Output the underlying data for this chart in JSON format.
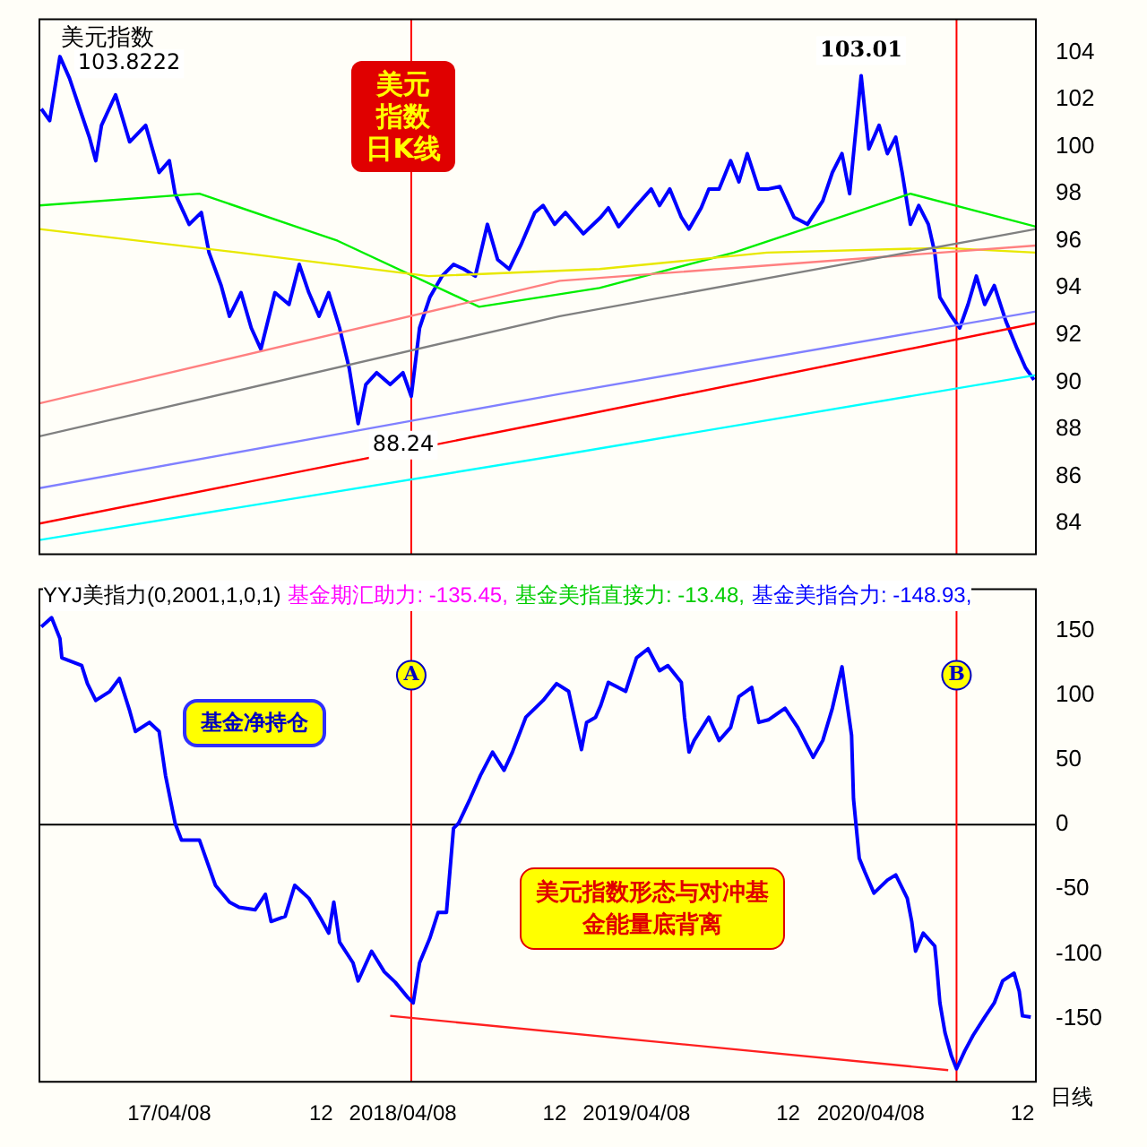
{
  "chart_data": [
    {
      "type": "line",
      "marker": "none",
      "grid": false,
      "legend": false,
      "tick_labels": "y",
      "xlim": [
        "2016-09-17",
        "2020-12-22"
      ],
      "ylim": [
        82.7,
        105.4
      ],
      "yticks": [
        84,
        86,
        88,
        90,
        92,
        94,
        96,
        98,
        100,
        102,
        104
      ],
      "xticks": [
        {
          "value": "2017-04-08",
          "label": null
        },
        {
          "value": "2017-12-01",
          "label": null
        },
        {
          "value": "2018-04-08",
          "label": null
        },
        {
          "value": "2018-12-01",
          "label": null
        },
        {
          "value": "2019-04-08",
          "label": null
        },
        {
          "value": "2019-12-01",
          "label": null
        },
        {
          "value": "2020-04-08",
          "label": null
        },
        {
          "value": "2020-12-01",
          "label": null
        }
      ],
      "series": [
        {
          "color": "#00ffff",
          "x": [
            "2016-09-17",
            "2018-12-09",
            "2020-12-22"
          ],
          "values": [
            83.3,
            86.9,
            90.3
          ]
        },
        {
          "color": "#ff0000",
          "x": [
            "2016-09-17",
            "2018-12-09",
            "2020-12-22"
          ],
          "values": [
            84.0,
            88.4,
            92.5
          ]
        },
        {
          "color": "#8080ff",
          "x": [
            "2016-09-17",
            "2018-12-09",
            "2020-12-22"
          ],
          "values": [
            85.5,
            89.5,
            93.0
          ]
        },
        {
          "color": "#808080",
          "x": [
            "2016-09-17",
            "2018-12-09",
            "2020-12-22"
          ],
          "values": [
            87.7,
            92.8,
            96.5
          ]
        },
        {
          "color": "#ff8080",
          "x": [
            "2016-09-17",
            "2018-12-09",
            "2020-12-22"
          ],
          "values": [
            89.1,
            94.3,
            95.8
          ]
        },
        {
          "color": "#e8e800",
          "x": [
            "2016-09-17",
            "2017-07-26",
            "2018-05-18",
            "2019-02-09",
            "2019-10-29",
            "2020-07-30",
            "2020-12-22"
          ],
          "values": [
            96.5,
            95.5,
            94.5,
            94.8,
            95.5,
            95.7,
            95.5
          ]
        },
        {
          "color": "#00ee00",
          "x": [
            "2016-09-17",
            "2017-05-25",
            "2017-12-27",
            "2018-08-05",
            "2019-02-09",
            "2019-09-07",
            "2020-06-09",
            "2020-12-22"
          ],
          "values": [
            97.5,
            98.0,
            96.0,
            93.2,
            94.0,
            95.5,
            98.0,
            96.6
          ]
        },
        {
          "name": "美元指数",
          "color": "#0000ff",
          "x": [
            "2016-09-20",
            "2016-10-03",
            "2016-10-19",
            "2016-11-03",
            "2016-11-19",
            "2016-12-04",
            "2016-12-14",
            "2016-12-23",
            "2017-01-14",
            "2017-02-05",
            "2017-03-02",
            "2017-03-23",
            "2017-04-08",
            "2017-04-17",
            "2017-05-09",
            "2017-05-28",
            "2017-06-09",
            "2017-06-28",
            "2017-07-11",
            "2017-07-29",
            "2017-08-14",
            "2017-08-29",
            "2017-09-20",
            "2017-10-12",
            "2017-10-28",
            "2017-11-12",
            "2017-11-28",
            "2017-12-13",
            "2017-12-30",
            "2018-01-14",
            "2018-01-28",
            "2018-02-09",
            "2018-02-26",
            "2018-03-19",
            "2018-04-08",
            "2018-04-21",
            "2018-05-04",
            "2018-05-20",
            "2018-06-08",
            "2018-06-26",
            "2018-07-12",
            "2018-07-30",
            "2018-08-18",
            "2018-09-03",
            "2018-09-21",
            "2018-10-09",
            "2018-10-31",
            "2018-11-13",
            "2018-12-01",
            "2018-12-18",
            "2019-01-15",
            "2019-02-11",
            "2019-02-23",
            "2019-03-11",
            "2019-04-08",
            "2019-05-01",
            "2019-05-14",
            "2019-05-30",
            "2019-06-17",
            "2019-06-29",
            "2019-07-18",
            "2019-07-30",
            "2019-08-15",
            "2019-09-02",
            "2019-09-15",
            "2019-09-28",
            "2019-10-16",
            "2019-10-31",
            "2019-11-18",
            "2019-12-10",
            "2019-12-31",
            "2020-01-24",
            "2020-02-08",
            "2020-02-23",
            "2020-03-06",
            "2020-03-24",
            "2020-04-05",
            "2020-04-21",
            "2020-05-04",
            "2020-05-17",
            "2020-05-27",
            "2020-06-09",
            "2020-06-22",
            "2020-07-07",
            "2020-07-17",
            "2020-07-25",
            "2020-08-12",
            "2020-08-25",
            "2020-09-07",
            "2020-09-20",
            "2020-10-03",
            "2020-10-18",
            "2020-11-05",
            "2020-11-23",
            "2020-12-06",
            "2020-12-19"
          ],
          "values": [
            101.6,
            101.1,
            103.82,
            102.9,
            101.6,
            100.4,
            99.4,
            100.9,
            102.2,
            100.2,
            100.9,
            98.9,
            99.4,
            98.0,
            96.7,
            97.2,
            95.5,
            94.1,
            92.8,
            93.8,
            92.3,
            91.4,
            93.8,
            93.3,
            95.0,
            93.8,
            92.8,
            93.8,
            92.3,
            90.6,
            88.24,
            89.9,
            90.4,
            89.9,
            90.4,
            89.4,
            92.3,
            93.6,
            94.5,
            95.0,
            94.8,
            94.5,
            96.7,
            95.2,
            94.8,
            95.8,
            97.2,
            97.5,
            96.7,
            97.2,
            96.3,
            97.0,
            97.4,
            96.6,
            97.5,
            98.2,
            97.5,
            98.2,
            97.0,
            96.5,
            97.4,
            98.2,
            98.2,
            99.4,
            98.5,
            99.7,
            98.2,
            98.2,
            98.3,
            97.0,
            96.7,
            97.7,
            98.9,
            99.7,
            98.0,
            103.01,
            99.9,
            100.9,
            99.7,
            100.4,
            98.9,
            96.7,
            97.5,
            96.7,
            95.5,
            93.6,
            92.8,
            92.3,
            93.3,
            94.5,
            93.3,
            94.1,
            92.6,
            91.4,
            90.6,
            90.1
          ]
        }
      ],
      "ref_lines": [
        {
          "axis": "x",
          "value": "2018-04-21",
          "color": "#ff0000"
        },
        {
          "axis": "x",
          "value": "2020-08-20",
          "color": "#ff0000"
        }
      ],
      "annotations": [
        {
          "text": "103.8222",
          "x": "2016-10-19",
          "y": 103.82
        },
        {
          "text": "88.24",
          "x": "2018-01-28",
          "y": 88.24
        },
        {
          "text": "103.01",
          "x": "2020-03-24",
          "y": 103.01
        },
        "美元指数日K线"
      ]
    },
    {
      "type": "line",
      "marker": "none",
      "grid": false,
      "legend": false,
      "title": "YYJ美指力(0,2001,1,0,1)",
      "xlim": [
        "2016-09-17",
        "2020-12-22"
      ],
      "ylim": [
        -199,
        182
      ],
      "yticks": [
        -150,
        -100,
        -50,
        0,
        50,
        100,
        150
      ],
      "xticks": [
        {
          "value": "2017-04-08",
          "label": "17/04/08"
        },
        {
          "value": "2017-12-01",
          "label": "12"
        },
        {
          "value": "2018-04-08",
          "label": "2018/04/08"
        },
        {
          "value": "2018-12-01",
          "label": "12"
        },
        {
          "value": "2019-04-08",
          "label": "2019/04/08"
        },
        {
          "value": "2019-12-01",
          "label": "12"
        },
        {
          "value": "2020-04-08",
          "label": "2020/04/08"
        },
        {
          "value": "2020-12-01",
          "label": "12"
        }
      ],
      "series": [
        {
          "color": "#0000ff",
          "x": [
            "2016-09-20",
            "2016-10-06",
            "2016-10-19",
            "2016-10-22",
            "2016-11-22",
            "2016-12-01",
            "2016-12-14",
            "2017-01-05",
            "2017-01-20",
            "2017-02-05",
            "2017-02-14",
            "2017-03-08",
            "2017-03-23",
            "2017-04-02",
            "2017-04-17",
            "2017-04-27",
            "2017-05-25",
            "2017-06-19",
            "2017-07-11",
            "2017-07-26",
            "2017-08-20",
            "2017-09-05",
            "2017-09-14",
            "2017-10-06",
            "2017-10-21",
            "2017-11-12",
            "2017-12-01",
            "2017-12-13",
            "2017-12-21",
            "2017-12-30",
            "2018-01-20",
            "2018-01-28",
            "2018-02-18",
            "2018-03-10",
            "2018-03-27",
            "2018-04-16",
            "2018-04-24",
            "2018-05-04",
            "2018-05-20",
            "2018-06-02",
            "2018-06-15",
            "2018-06-26",
            "2018-07-04",
            "2018-07-22",
            "2018-08-07",
            "2018-08-26",
            "2018-09-13",
            "2018-09-26",
            "2018-10-17",
            "2018-11-13",
            "2018-12-04",
            "2018-12-23",
            "2019-01-12",
            "2019-01-20",
            "2019-02-03",
            "2019-02-11",
            "2019-02-23",
            "2019-03-22",
            "2019-04-08",
            "2019-04-26",
            "2019-05-14",
            "2019-05-27",
            "2019-06-17",
            "2019-06-22",
            "2019-06-29",
            "2019-07-07",
            "2019-07-30",
            "2019-08-15",
            "2019-09-02",
            "2019-09-15",
            "2019-10-05",
            "2019-10-16",
            "2019-10-31",
            "2019-11-26",
            "2019-12-16",
            "2020-01-09",
            "2020-01-24",
            "2020-02-08",
            "2020-02-23",
            "2020-03-09",
            "2020-03-12",
            "2020-03-21",
            "2020-03-30",
            "2020-04-13",
            "2020-05-04",
            "2020-05-17",
            "2020-06-04",
            "2020-06-11",
            "2020-06-17",
            "2020-06-29",
            "2020-07-17",
            "2020-07-20",
            "2020-07-25",
            "2020-08-02",
            "2020-08-12",
            "2020-08-20",
            "2020-09-02",
            "2020-09-15",
            "2020-10-03",
            "2020-10-18",
            "2020-10-31",
            "2020-11-18",
            "2020-11-26",
            "2020-12-01",
            "2020-12-14"
          ],
          "values": [
            153,
            160,
            144,
            129,
            123,
            109,
            96,
            103,
            113,
            88,
            72,
            79,
            72,
            38,
            1,
            -12,
            -12,
            -47,
            -60,
            -64,
            -66,
            -54,
            -75,
            -71,
            -47,
            -57,
            -73,
            -84,
            -60,
            -91,
            -107,
            -121,
            -98,
            -114,
            -122,
            -134,
            -138,
            -107,
            -88,
            -68,
            -68,
            -3,
            1,
            20,
            38,
            56,
            42,
            56,
            83,
            96,
            109,
            103,
            58,
            79,
            83,
            92,
            110,
            103,
            129,
            136,
            119,
            123,
            110,
            83,
            56,
            65,
            83,
            65,
            75,
            99,
            106,
            79,
            81,
            90,
            75,
            52,
            65,
            90,
            122,
            69,
            20,
            -26,
            -37,
            -53,
            -43,
            -39,
            -57,
            -75,
            -98,
            -84,
            -94,
            -109,
            -138,
            -161,
            -179,
            -189,
            -175,
            -163,
            -149,
            -138,
            -121,
            -115,
            -129,
            -148,
            -149
          ]
        },
        {
          "color": "#ff2020",
          "x": [
            "2018-03-19",
            "2020-08-07"
          ],
          "values": [
            -148,
            -190
          ]
        }
      ],
      "ref_lines": [
        {
          "axis": "y",
          "value": 0,
          "color": "#000000"
        },
        {
          "axis": "x",
          "value": "2018-04-21",
          "label": "A",
          "color": "#ff0000"
        },
        {
          "axis": "x",
          "value": "2020-08-20",
          "label": "B",
          "color": "#ff0000"
        }
      ],
      "annotations": [
        "基金期汇助力: -135.45,",
        "基金美指直接力: -13.48,",
        "基金美指合力: -148.93,",
        "基金净持仓",
        "美元指数形态与对冲基金能量底背离",
        "日线"
      ]
    }
  ]
}
